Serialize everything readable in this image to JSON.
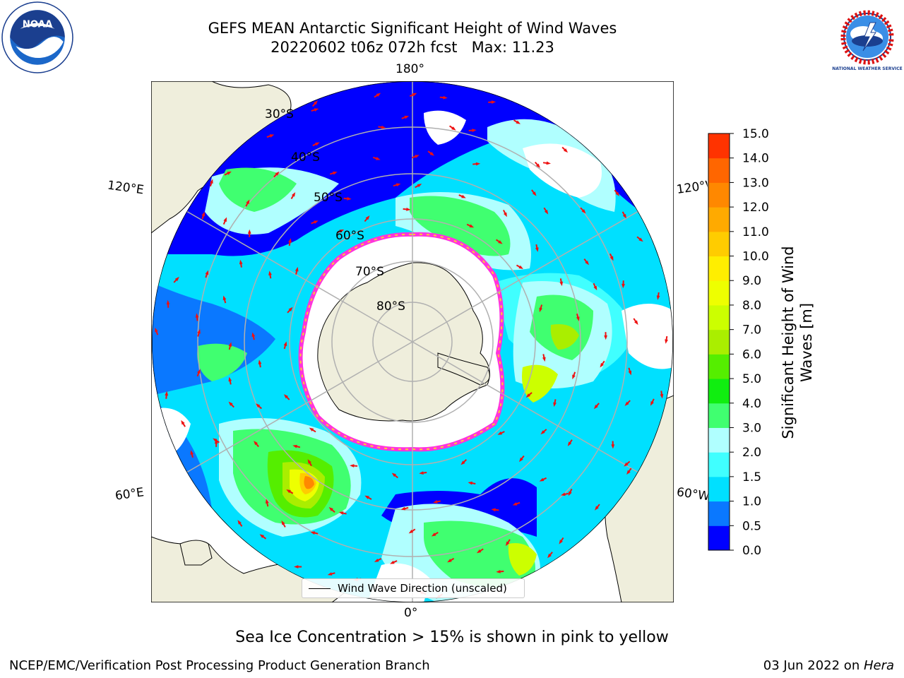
{
  "header": {
    "title_line1": "GEFS MEAN Antarctic Significant Height of Wind Waves",
    "title_line2": "20220602 t06z 072h fcst   Max: 11.23"
  },
  "logos": {
    "left": "noaa-logo",
    "left_text": "NOAA",
    "right": "nws-logo",
    "right_text": "NATIONAL WEATHER SERVICE"
  },
  "map": {
    "projection": "south-polar-stereographic",
    "longitude_labels": [
      {
        "name": "lon-180",
        "text": "180°"
      },
      {
        "name": "lon-120e",
        "text": "120°E"
      },
      {
        "name": "lon-120w",
        "text": "120°W"
      },
      {
        "name": "lon-60e",
        "text": "60°E"
      },
      {
        "name": "lon-60w",
        "text": "60°W"
      },
      {
        "name": "lon-0",
        "text": "0°"
      }
    ],
    "latitude_labels": [
      "30°S",
      "40°S",
      "50°S",
      "60°S",
      "70°S",
      "80°S"
    ],
    "legend": {
      "label": "Wind Wave Direction (unscaled)"
    },
    "colors": {
      "land": "#efeedc",
      "ice_pink": "#ff33dd",
      "ice_yellow": "#ffcc33",
      "grid": "#b0b0b0",
      "arrow": "#ee1111"
    }
  },
  "colorbar": {
    "title": "Significant Height of Wind\nWaves [m]",
    "ticks": [
      "0.0",
      "0.5",
      "1.0",
      "1.5",
      "2.0",
      "3.0",
      "4.0",
      "5.0",
      "6.0",
      "7.0",
      "8.0",
      "9.0",
      "10.0",
      "11.0",
      "12.0",
      "13.0",
      "14.0",
      "15.0"
    ],
    "colors": [
      "#0000ff",
      "#0a78ff",
      "#00e0ff",
      "#40ffff",
      "#b0ffff",
      "#40ff70",
      "#10ee10",
      "#55ee00",
      "#aaee00",
      "#ccff00",
      "#eeff00",
      "#ffee00",
      "#ffcc00",
      "#ffaa00",
      "#ff8800",
      "#ff6600",
      "#ff3300",
      "#ff0000"
    ]
  },
  "notes": {
    "ice": "Sea Ice Concentration > 15% is shown in pink to yellow"
  },
  "footer": {
    "left": "NCEP/EMC/Verification Post Processing Product Generation Branch",
    "right_date": "03 Jun 2022 on ",
    "right_machine": "Hera"
  }
}
